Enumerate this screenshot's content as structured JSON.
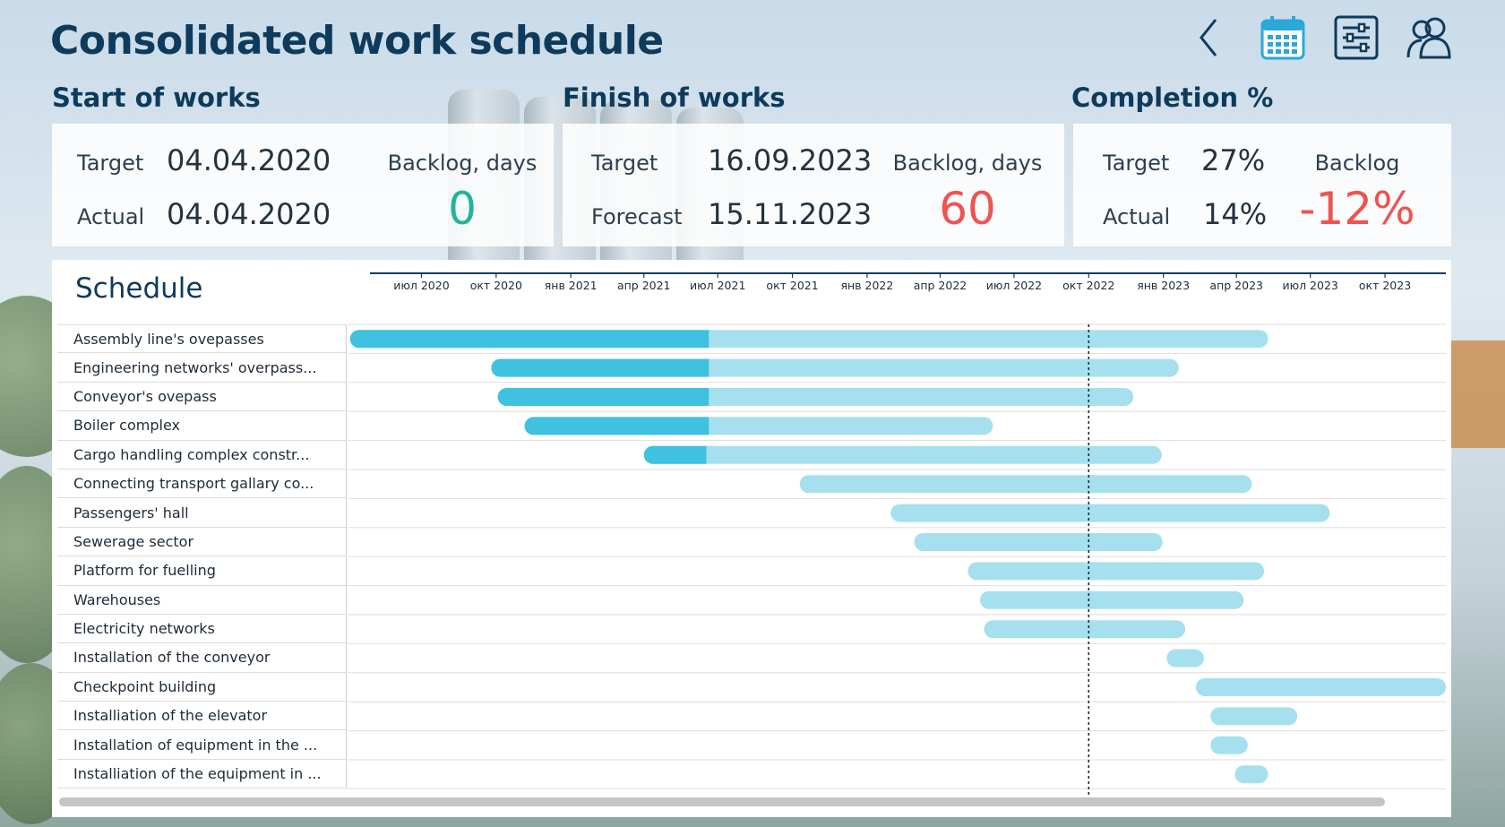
{
  "header": {
    "title": "Consolidated work schedule",
    "toolbar": [
      {
        "name": "back-button",
        "icon": "chevron-left-icon"
      },
      {
        "name": "calendar-button",
        "icon": "calendar-icon"
      },
      {
        "name": "filters-button",
        "icon": "sliders-icon"
      },
      {
        "name": "users-button",
        "icon": "users-icon"
      }
    ]
  },
  "start": {
    "heading": "Start of works",
    "target_label": "Target",
    "target_value": "04.04.2020",
    "actual_label": "Actual",
    "actual_value": "04.04.2020",
    "backlog_label": "Backlog, days",
    "backlog_value": "0",
    "backlog_color": "#1fb59a"
  },
  "finish": {
    "heading": "Finish of works",
    "target_label": "Target",
    "target_value": "16.09.2023",
    "forecast_label": "Forecast",
    "forecast_value": "15.11.2023",
    "backlog_label": "Backlog, days",
    "backlog_value": "60",
    "backlog_color": "#ef5350"
  },
  "completion": {
    "heading": "Completion %",
    "target_label": "Target",
    "target_value": "27%",
    "actual_label": "Actual",
    "actual_value": "14%",
    "backlog_label": "Backlog",
    "backlog_value": "-12%",
    "backlog_color": "#ef5350"
  },
  "schedule": {
    "title": "Schedule",
    "colors": {
      "done": "#3fc1df",
      "planned": "#a6e0ef",
      "today": "#1d2b38"
    },
    "timeline_start": "2020-04-01",
    "timeline_end": "2023-12-15",
    "today": "2022-10-01",
    "axis_ticks": [
      {
        "label": "июл 2020",
        "date": "2020-07-01"
      },
      {
        "label": "окт 2020",
        "date": "2020-10-01"
      },
      {
        "label": "янв 2021",
        "date": "2021-01-01"
      },
      {
        "label": "апр 2021",
        "date": "2021-04-01"
      },
      {
        "label": "июл 2021",
        "date": "2021-07-01"
      },
      {
        "label": "окт 2021",
        "date": "2021-10-01"
      },
      {
        "label": "янв 2022",
        "date": "2022-01-01"
      },
      {
        "label": "апр 2022",
        "date": "2022-04-01"
      },
      {
        "label": "июл 2022",
        "date": "2022-07-01"
      },
      {
        "label": "окт 2022",
        "date": "2022-10-01"
      },
      {
        "label": "янв 2023",
        "date": "2023-01-01"
      },
      {
        "label": "апр 2023",
        "date": "2023-04-01"
      },
      {
        "label": "июл 2023",
        "date": "2023-07-01"
      },
      {
        "label": "окт 2023",
        "date": "2023-10-01"
      }
    ],
    "tasks": [
      {
        "name": "Assembly line's ovepasses",
        "start": "2020-04-04",
        "done_until": "2021-06-20",
        "end": "2023-05-10"
      },
      {
        "name": "Engineering networks' overpass...",
        "start": "2020-09-25",
        "done_until": "2021-06-20",
        "end": "2023-01-20"
      },
      {
        "name": "Conveyor's ovepass",
        "start": "2020-10-03",
        "done_until": "2021-06-20",
        "end": "2022-11-25"
      },
      {
        "name": "Boiler complex",
        "start": "2020-11-05",
        "done_until": "2021-06-20",
        "end": "2022-06-05"
      },
      {
        "name": "Cargo handling complex constr...",
        "start": "2021-04-01",
        "done_until": "2021-06-17",
        "end": "2022-12-30"
      },
      {
        "name": "Connecting transport gallary co...",
        "start": "2021-10-10",
        "done_until": null,
        "end": "2023-04-20"
      },
      {
        "name": "Passengers' hall",
        "start": "2022-01-30",
        "done_until": null,
        "end": "2023-07-25"
      },
      {
        "name": "Sewerage sector",
        "start": "2022-02-28",
        "done_until": null,
        "end": "2022-12-31"
      },
      {
        "name": "Platform for fuelling",
        "start": "2022-05-05",
        "done_until": null,
        "end": "2023-05-05"
      },
      {
        "name": "Warehouses",
        "start": "2022-05-20",
        "done_until": null,
        "end": "2023-04-10"
      },
      {
        "name": "Electricity networks",
        "start": "2022-05-25",
        "done_until": null,
        "end": "2023-01-28"
      },
      {
        "name": "Installation of the conveyor",
        "start": "2023-01-05",
        "done_until": null,
        "end": "2023-02-20"
      },
      {
        "name": "Checkpoint building",
        "start": "2023-02-10",
        "done_until": null,
        "end": "2023-12-15"
      },
      {
        "name": "Installiation of the elevator",
        "start": "2023-02-28",
        "done_until": null,
        "end": "2023-06-15"
      },
      {
        "name": "Installation of equipment in the ...",
        "start": "2023-02-28",
        "done_until": null,
        "end": "2023-04-15"
      },
      {
        "name": "Installiation of the equipment in ...",
        "start": "2023-03-30",
        "done_until": null,
        "end": "2023-05-10"
      }
    ]
  }
}
